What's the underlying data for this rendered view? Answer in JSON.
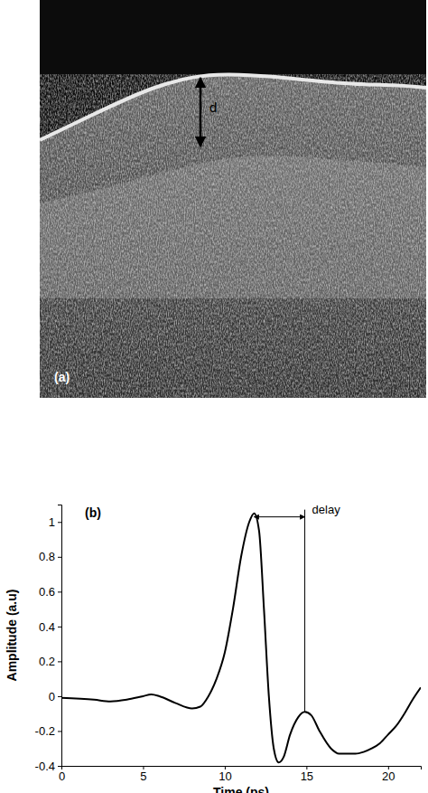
{
  "image_panel": {
    "label": "(a)",
    "annotation": "d"
  },
  "chart_data": {
    "type": "line",
    "panel_label": "(b)",
    "x_label": "Time (ps)",
    "y_label": "Amplitude (a.u)",
    "x": [
      0,
      2,
      3,
      4,
      5,
      5.5,
      6,
      7,
      8,
      8.5,
      9,
      9.5,
      10,
      10.5,
      11,
      11.5,
      11.8,
      12.1,
      12.4,
      12.7,
      13.0,
      13.3,
      13.6,
      14,
      14.5,
      14.9,
      15.3,
      15.8,
      16.5,
      17,
      17.5,
      18,
      18.5,
      19,
      19.5,
      20,
      20.5,
      21,
      21.5,
      22
    ],
    "values": [
      -0.01,
      -0.02,
      -0.03,
      -0.02,
      0.0,
      0.01,
      0.0,
      -0.04,
      -0.07,
      -0.06,
      0.0,
      0.1,
      0.25,
      0.5,
      0.8,
      1.0,
      1.05,
      0.95,
      0.5,
      0.0,
      -0.3,
      -0.38,
      -0.35,
      -0.22,
      -0.12,
      -0.09,
      -0.11,
      -0.2,
      -0.3,
      -0.33,
      -0.33,
      -0.33,
      -0.32,
      -0.3,
      -0.27,
      -0.22,
      -0.17,
      -0.1,
      -0.02,
      0.05
    ],
    "color": "#000000",
    "xlim": [
      0,
      22
    ],
    "xticks": [
      0,
      5,
      10,
      15,
      20
    ],
    "ylim": [
      -0.4,
      1.1
    ],
    "yticks": [
      -0.4,
      -0.2,
      0,
      0.2,
      0.4,
      0.6,
      0.8,
      1
    ],
    "grid": false,
    "annotations": [
      {
        "text": "delay",
        "x": [
          11.8,
          14.9
        ]
      }
    ]
  }
}
